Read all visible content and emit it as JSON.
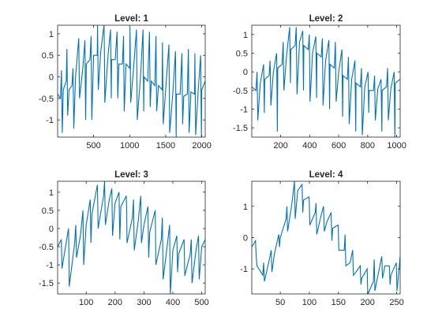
{
  "figure": {
    "background": "#ffffff",
    "axes_color": "#262626",
    "line_color": "#0072bd"
  },
  "chart_data": [
    {
      "type": "line",
      "title": "Level: 1",
      "xlabel": "",
      "ylabel": "",
      "xlim": [
        1,
        2048
      ],
      "ylim": [
        -1.4,
        1.2
      ],
      "xticks": [
        500,
        1000,
        1500,
        2000
      ],
      "yticks": [
        -1,
        -0.5,
        0,
        0.5,
        1
      ],
      "xtick_labels": [
        "500",
        "1000",
        "1500",
        "2000"
      ],
      "ytick_labels": [
        "-1",
        "-0.5",
        "0",
        "0.5",
        "1"
      ],
      "grid": false,
      "series": [
        {
          "color": "#0072bd",
          "x": [
            1,
            40,
            80,
            120,
            160,
            200,
            250,
            300,
            350,
            400,
            450,
            500,
            550,
            600,
            650,
            700,
            750,
            800,
            850,
            900,
            950,
            1000,
            1050,
            1100,
            1150,
            1200,
            1250,
            1300,
            1350,
            1400,
            1450,
            1500,
            1550,
            1600,
            1650,
            1700,
            1750,
            1800,
            1850,
            1900,
            1950,
            2000,
            2048
          ],
          "y": [
            -0.4,
            -0.5,
            -0.3,
            -0.1,
            -0.3,
            -0.2,
            0.0,
            0.1,
            0.2,
            0.3,
            0.4,
            0.5,
            0.5,
            0.6,
            0.6,
            0.5,
            0.4,
            0.4,
            0.3,
            0.3,
            0.3,
            0.2,
            0.1,
            0.1,
            0.0,
            0.0,
            -0.1,
            -0.1,
            -0.2,
            -0.2,
            -0.3,
            -0.3,
            -0.3,
            -0.35,
            -0.4,
            -0.4,
            -0.45,
            -0.4,
            -0.35,
            -0.4,
            -0.35,
            -0.3,
            -0.1
          ]
        }
      ],
      "spikes": {
        "x": [
          60,
          135,
          220,
          300,
          385,
          470,
          560,
          650,
          740,
          830,
          920,
          1010,
          1100,
          1190,
          1280,
          1370,
          1460,
          1550,
          1640,
          1730,
          1820,
          1910,
          1990
        ],
        "peak": [
          0.15,
          0.65,
          0.2,
          0.9,
          0.85,
          0.95,
          1.2,
          1.2,
          1.1,
          1.05,
          0.95,
          1.15,
          1.1,
          1.1,
          1.05,
          0.95,
          0.8,
          0.75,
          0.6,
          0.55,
          0.65,
          0.55,
          0.5
        ],
        "trough": [
          -1.3,
          -0.9,
          -1.2,
          -0.5,
          -1.0,
          -1.0,
          -0.3,
          -0.6,
          -0.5,
          -0.5,
          -0.8,
          -0.6,
          -1.0,
          -0.8,
          -0.7,
          -0.8,
          -1.1,
          -1.3,
          -1.4,
          -1.1,
          -1.3,
          -1.35,
          -1.4
        ]
      }
    },
    {
      "type": "line",
      "title": "Level: 2",
      "xlabel": "",
      "ylabel": "",
      "xlim": [
        1,
        1024
      ],
      "ylim": [
        -1.75,
        1.25
      ],
      "xticks": [
        200,
        400,
        600,
        800,
        1000
      ],
      "yticks": [
        -1.5,
        -1,
        -0.5,
        0,
        0.5,
        1
      ],
      "xtick_labels": [
        "200",
        "400",
        "600",
        "800",
        "1000"
      ],
      "ytick_labels": [
        "-1.5",
        "-1",
        "-0.5",
        "0",
        "0.5",
        "1"
      ],
      "grid": false,
      "series": [
        {
          "color": "#0072bd",
          "x": [
            1,
            30,
            60,
            90,
            120,
            150,
            180,
            210,
            240,
            270,
            300,
            330,
            360,
            390,
            420,
            450,
            480,
            510,
            540,
            570,
            600,
            630,
            660,
            690,
            720,
            750,
            780,
            810,
            840,
            870,
            900,
            930,
            960,
            990,
            1024
          ],
          "y": [
            -0.4,
            -0.5,
            -0.3,
            -0.2,
            -0.1,
            0.0,
            0.1,
            0.2,
            0.4,
            0.6,
            0.7,
            0.8,
            0.7,
            0.6,
            0.5,
            0.5,
            0.4,
            0.3,
            0.2,
            0.1,
            0.0,
            -0.1,
            -0.2,
            -0.2,
            -0.3,
            -0.4,
            -0.4,
            -0.5,
            -0.5,
            -0.45,
            -0.5,
            -0.4,
            -0.45,
            -0.3,
            -0.2
          ]
        }
      ],
      "spikes": {
        "x": [
          40,
          85,
          130,
          175,
          220,
          265,
          310,
          355,
          400,
          445,
          490,
          535,
          580,
          625,
          670,
          715,
          760,
          805,
          850,
          895,
          940,
          985
        ],
        "peak": [
          0.0,
          0.2,
          0.3,
          0.5,
          0.8,
          1.2,
          1.2,
          1.1,
          1.0,
          0.95,
          0.9,
          0.85,
          0.8,
          0.6,
          0.4,
          0.3,
          0.1,
          0.0,
          -0.1,
          -0.2,
          0.1,
          0.0
        ],
        "trough": [
          -1.3,
          -1.1,
          -0.9,
          -1.6,
          -0.5,
          -0.3,
          -0.6,
          -0.5,
          -0.8,
          -0.7,
          -0.9,
          -1.0,
          -0.8,
          -1.2,
          -1.4,
          -1.6,
          -1.7,
          -1.1,
          -1.3,
          -1.6,
          -1.3,
          -1.8
        ]
      }
    },
    {
      "type": "line",
      "title": "Level: 3",
      "xlabel": "",
      "ylabel": "",
      "xlim": [
        1,
        512
      ],
      "ylim": [
        -1.8,
        1.3
      ],
      "xticks": [
        100,
        200,
        300,
        400,
        500
      ],
      "yticks": [
        -1.5,
        -1,
        -0.5,
        0,
        0.5,
        1
      ],
      "xtick_labels": [
        "100",
        "200",
        "300",
        "400",
        "500"
      ],
      "ytick_labels": [
        "-1.5",
        "-1",
        "-0.5",
        "0",
        "0.5",
        "1"
      ],
      "grid": false,
      "series": [
        {
          "color": "#0072bd",
          "x": [
            1,
            20,
            40,
            60,
            80,
            100,
            120,
            140,
            160,
            180,
            200,
            220,
            240,
            260,
            280,
            300,
            320,
            340,
            360,
            380,
            400,
            420,
            440,
            460,
            480,
            500,
            512
          ],
          "y": [
            -0.5,
            -0.9,
            -0.6,
            -0.4,
            -0.2,
            0.1,
            0.4,
            0.6,
            0.9,
            0.8,
            0.7,
            0.6,
            0.5,
            0.3,
            0.2,
            0.1,
            -0.1,
            -0.2,
            -0.3,
            -0.5,
            -0.6,
            -0.7,
            -0.8,
            -0.7,
            -0.6,
            -0.5,
            -0.3
          ]
        }
      ],
      "spikes": {
        "x": [
          15,
          40,
          65,
          90,
          115,
          140,
          165,
          190,
          215,
          240,
          265,
          290,
          315,
          340,
          365,
          390,
          415,
          440,
          465,
          490
        ],
        "peak": [
          -0.3,
          0.0,
          0.1,
          0.5,
          0.8,
          1.2,
          1.3,
          1.1,
          1.0,
          0.9,
          0.8,
          0.9,
          0.6,
          0.5,
          0.3,
          0.1,
          -0.2,
          -0.3,
          -0.3,
          -0.2
        ],
        "trough": [
          -1.1,
          -1.6,
          -0.8,
          -1.0,
          -0.4,
          0.0,
          0.1,
          -0.2,
          -0.3,
          -0.4,
          -0.6,
          -0.4,
          -0.8,
          -1.0,
          -1.4,
          -1.8,
          -1.2,
          -1.3,
          -1.5,
          -1.4
        ]
      }
    },
    {
      "type": "line",
      "title": "Level: 4",
      "xlabel": "",
      "ylabel": "",
      "xlim": [
        1,
        256
      ],
      "ylim": [
        -1.8,
        1.8
      ],
      "xticks": [
        50,
        100,
        150,
        200,
        250
      ],
      "yticks": [
        -1,
        0,
        1
      ],
      "xtick_labels": [
        "50",
        "100",
        "150",
        "200",
        "250"
      ],
      "ytick_labels": [
        "-1",
        "0",
        "1"
      ],
      "grid": false,
      "series": [
        {
          "color": "#0072bd",
          "x": [
            1,
            10,
            20,
            30,
            40,
            50,
            60,
            70,
            80,
            90,
            100,
            110,
            120,
            130,
            140,
            150,
            160,
            170,
            180,
            190,
            200,
            210,
            220,
            230,
            240,
            250,
            256
          ],
          "y": [
            -0.3,
            -0.9,
            -1.2,
            -0.8,
            -0.5,
            0.0,
            0.6,
            1.1,
            1.5,
            1.2,
            1.0,
            0.8,
            0.7,
            0.5,
            0.3,
            0.0,
            -0.4,
            -0.8,
            -1.1,
            -1.3,
            -1.6,
            -1.4,
            -1.0,
            -0.9,
            -1.2,
            -1.3,
            -0.6
          ]
        }
      ],
      "spikes": {
        "x": [
          8,
          22,
          35,
          48,
          62,
          75,
          88,
          100,
          112,
          125,
          138,
          150,
          162,
          175,
          188,
          200,
          212,
          225,
          238,
          250
        ],
        "peak": [
          -0.1,
          -0.8,
          -0.4,
          0.1,
          1.0,
          1.8,
          1.7,
          1.3,
          1.1,
          1.0,
          0.8,
          0.4,
          0.1,
          -0.4,
          -0.9,
          -1.0,
          -0.7,
          -0.6,
          -0.9,
          -0.8
        ],
        "trough": [
          -0.6,
          -1.4,
          -1.1,
          -0.3,
          0.2,
          0.6,
          0.8,
          0.4,
          0.1,
          0.2,
          -0.1,
          -0.4,
          -0.9,
          -1.2,
          -1.5,
          -1.8,
          -1.7,
          -1.3,
          -1.5,
          -1.7
        ]
      }
    }
  ]
}
